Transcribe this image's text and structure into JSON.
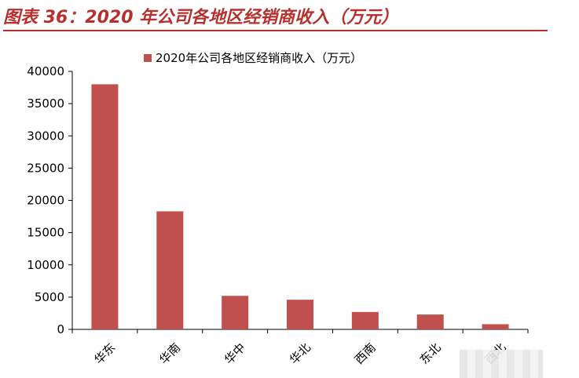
{
  "figure": {
    "title": "图表 36：2020 年公司各地区经销商收入（万元）"
  },
  "chart_data": {
    "type": "bar",
    "title": "",
    "categories": [
      "华东",
      "华南",
      "华中",
      "华北",
      "西南",
      "东北",
      "西北"
    ],
    "series": [
      {
        "name": "2020年公司各地区经销商收入（万元）",
        "values": [
          38000,
          18300,
          5200,
          4600,
          2700,
          2300,
          800
        ]
      }
    ],
    "ylim": [
      0,
      40000
    ],
    "yticks": [
      0,
      5000,
      10000,
      15000,
      20000,
      25000,
      30000,
      35000,
      40000
    ],
    "xlabel": "",
    "ylabel": "",
    "grid": false,
    "legend_position": "top-center",
    "bar_color": "#c0504d"
  }
}
